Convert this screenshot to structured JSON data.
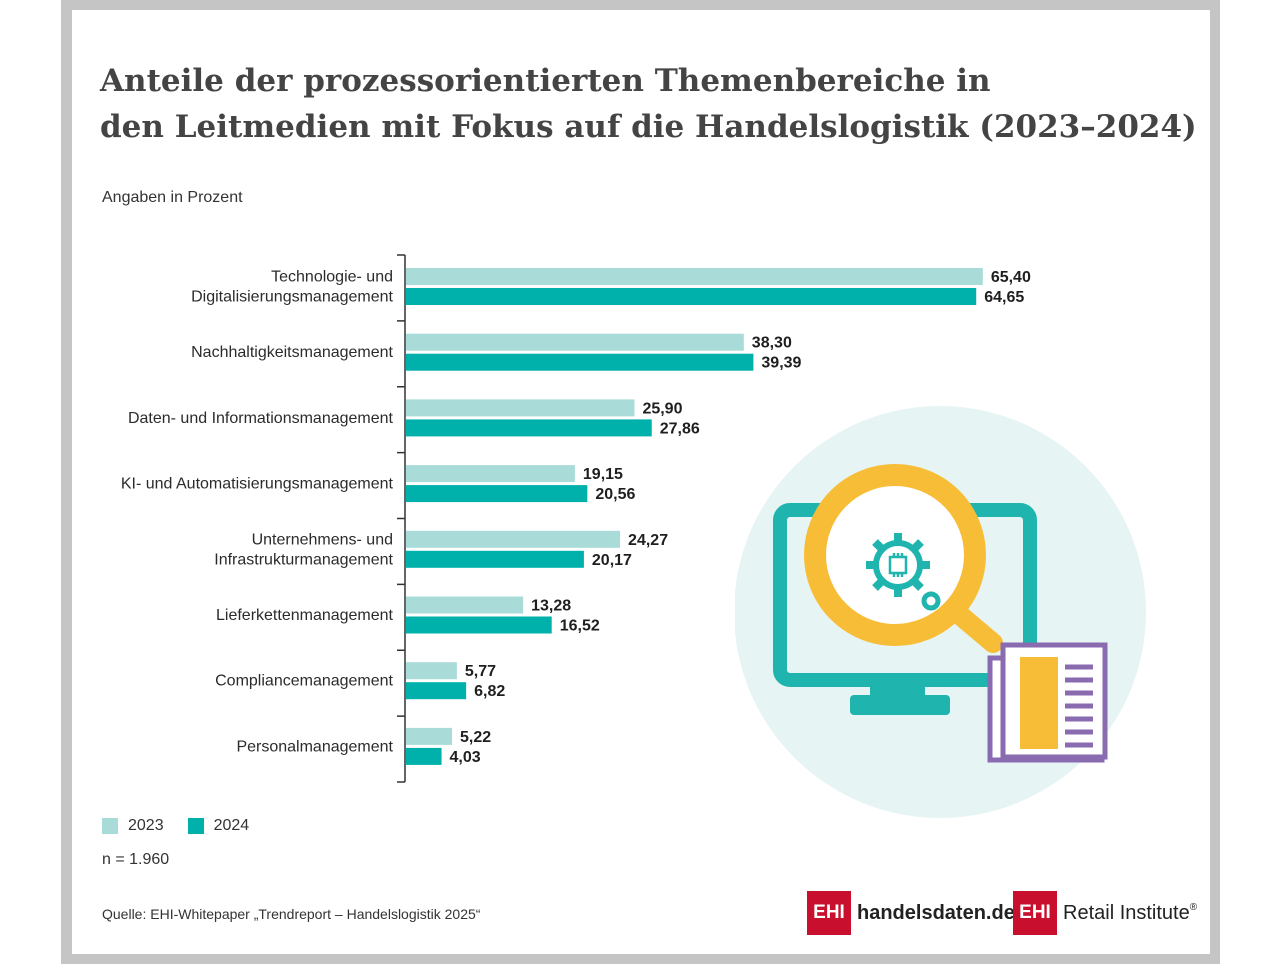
{
  "title_line1": "Anteile der prozessorientierten Themenbereiche in",
  "title_line2": "den Leitmedien mit Fokus auf die Handelslogistik (2023–2024)",
  "subtitle": "Angaben in Prozent",
  "n_note": "n = 1.960",
  "source": "Quelle: EHI-Whitepaper „Trendreport – Handelslogistik 2025“",
  "logos": {
    "logo1_box": "EHI",
    "logo1_text": "handelsdaten.de",
    "logo2_box": "EHI",
    "logo2_text": "Retail Institute",
    "logo2_reg": "®"
  },
  "colors": {
    "series_2023": "#a9dcd9",
    "series_2024": "#00b1ab",
    "circle": "#e6f4f3",
    "monitor": "#1fb5ae",
    "magnifier": "#f8bd37",
    "document": "#8a6bb0",
    "logo_red": "#c8102e"
  },
  "icons": [
    "monitor-icon",
    "magnifier-icon",
    "gear-icon",
    "chip-icon",
    "document-icon"
  ],
  "chart_data": {
    "type": "bar",
    "orientation": "horizontal",
    "categories": [
      [
        "Technologie- und",
        "Digitalisierungsmanagement"
      ],
      [
        "Nachhaltigkeitsmanagement"
      ],
      [
        "Daten- und Informationsmanagement"
      ],
      [
        "KI- und Automatisierungsmanagement"
      ],
      [
        "Unternehmens- und",
        "Infrastrukturmanagement"
      ],
      [
        "Lieferkettenmanagement"
      ],
      [
        "Compliancemanagement"
      ],
      [
        "Personalmanagement"
      ]
    ],
    "series": [
      {
        "name": "2023",
        "values": [
          65.4,
          38.3,
          25.9,
          19.15,
          24.27,
          13.28,
          5.77,
          5.22
        ],
        "labels": [
          "65,40",
          "38,30",
          "25,90",
          "19,15",
          "24,27",
          "13,28",
          "5,77",
          "5,22"
        ]
      },
      {
        "name": "2024",
        "values": [
          64.65,
          39.39,
          27.86,
          20.56,
          20.17,
          16.52,
          6.82,
          4.03
        ],
        "labels": [
          "64,65",
          "39,39",
          "27,86",
          "20,56",
          "20,17",
          "16,52",
          "6,82",
          "4,03"
        ]
      }
    ],
    "xlim": [
      0,
      100
    ],
    "grid": false,
    "legend_position": "bottom-left"
  }
}
